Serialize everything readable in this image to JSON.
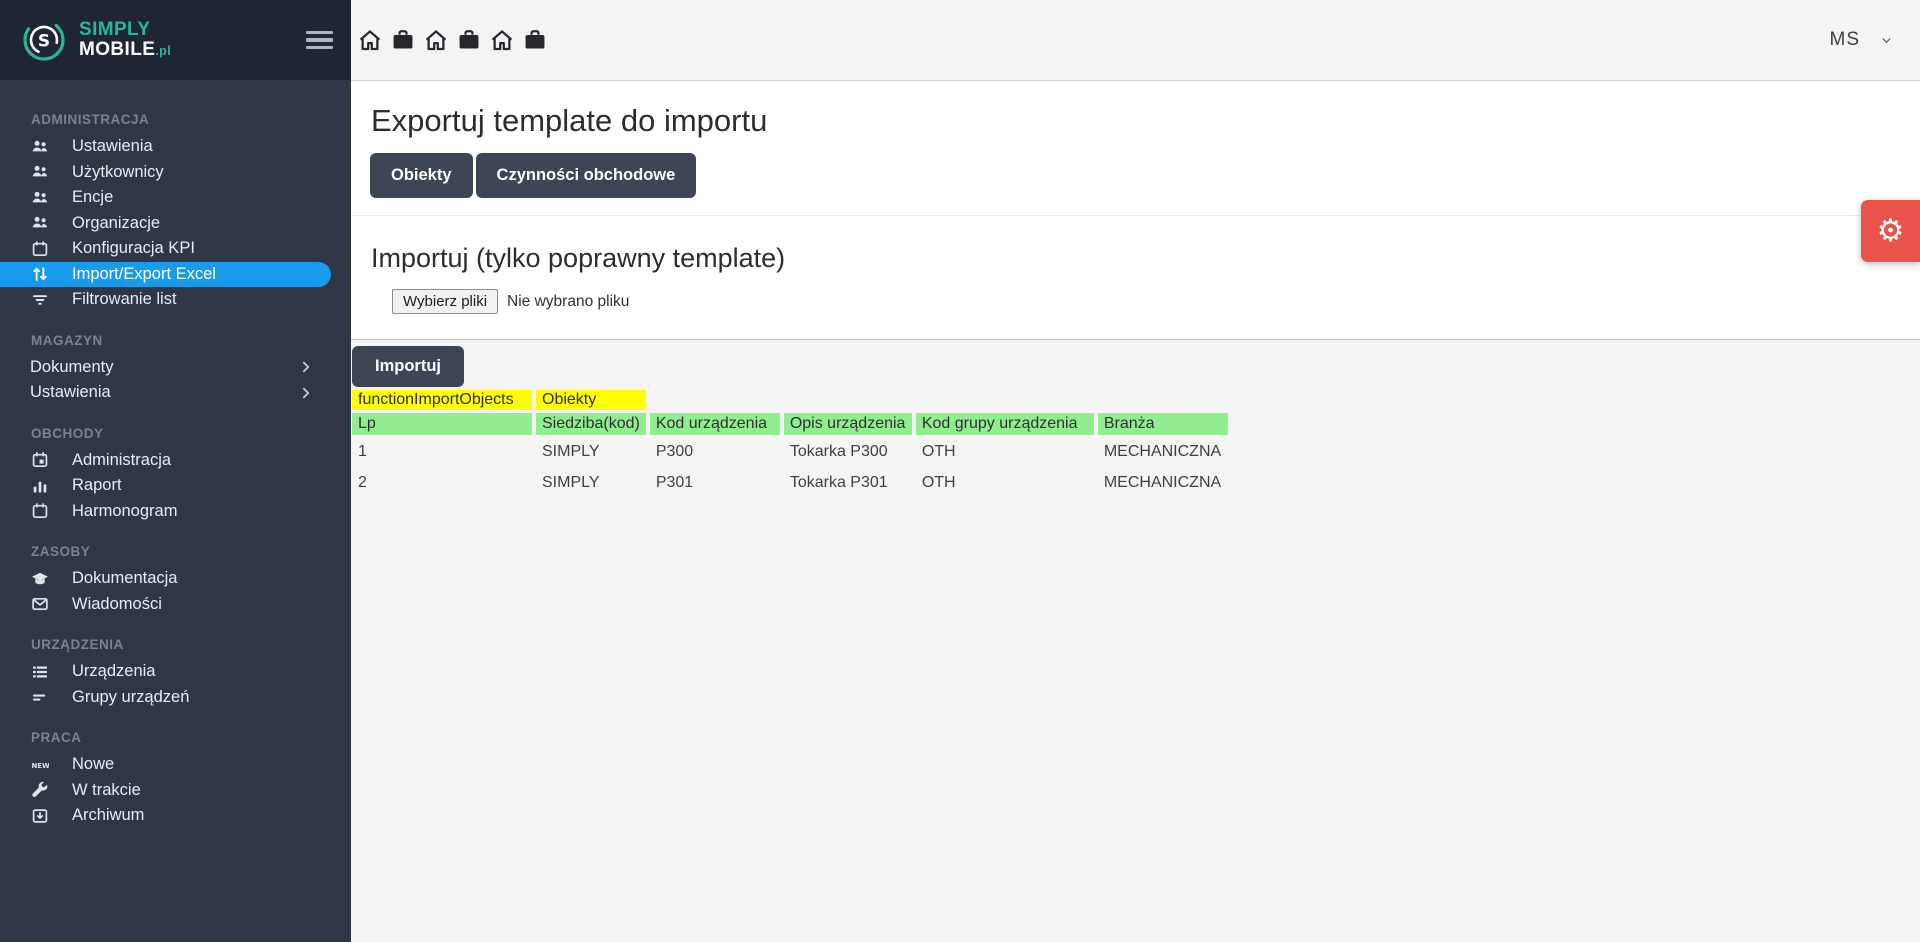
{
  "colors": {
    "accent_blue": "#199bec",
    "sidebar_bg": "#303646",
    "sidebar_header_bg": "#1f2533",
    "topbar_bg": "#f4f4f5",
    "panel_bg": "#ffffff",
    "content_bg": "#f4f4f5",
    "dark_button": "#3e4555",
    "highlight_yellow": "#ffff00",
    "highlight_green": "#90ee90",
    "danger_red": "#ea5349",
    "brand_teal": "#2eb49c"
  },
  "sidebar": {
    "logo": {
      "line1": "SIMPLY",
      "line2": "MOBILE",
      "suffix": ".pl"
    },
    "sections": [
      {
        "label": "ADMINISTRACJA",
        "items": [
          {
            "label": "Ustawienia",
            "icon": "users"
          },
          {
            "label": "Użytkownicy",
            "icon": "users"
          },
          {
            "label": "Encje",
            "icon": "users"
          },
          {
            "label": "Organizacje",
            "icon": "users"
          },
          {
            "label": "Konfiguracja KPI",
            "icon": "calendar"
          },
          {
            "label": "Import/Export Excel",
            "icon": "import-export",
            "active": true
          },
          {
            "label": "Filtrowanie list",
            "icon": "filter"
          }
        ]
      },
      {
        "label": "MAGAZYN",
        "items": [
          {
            "label": "Dokumenty",
            "chevron": true
          },
          {
            "label": "Ustawienia",
            "chevron": true
          }
        ]
      },
      {
        "label": "OBCHODY",
        "items": [
          {
            "label": "Administracja",
            "icon": "calendar-check"
          },
          {
            "label": "Raport",
            "icon": "bar-chart"
          },
          {
            "label": "Harmonogram",
            "icon": "calendar"
          }
        ]
      },
      {
        "label": "ZASOBY",
        "items": [
          {
            "label": "Dokumentacja",
            "icon": "education"
          },
          {
            "label": "Wiadomości",
            "icon": "mail"
          }
        ]
      },
      {
        "label": "URZĄDZENIA",
        "items": [
          {
            "label": "Urządzenia",
            "icon": "list"
          },
          {
            "label": "Grupy urządzeń",
            "icon": "dash"
          }
        ]
      },
      {
        "label": "PRACA",
        "items": [
          {
            "label": "Nowe",
            "icon": "new-badge"
          },
          {
            "label": "W trakcie",
            "icon": "wrench"
          },
          {
            "label": "Archiwum",
            "icon": "archive"
          }
        ]
      }
    ]
  },
  "topbar": {
    "breadcrumb": [
      {
        "icon": "home"
      },
      {
        "icon": "briefcase"
      },
      {
        "icon": "home"
      },
      {
        "icon": "briefcase"
      },
      {
        "icon": "home"
      },
      {
        "icon": "briefcase"
      }
    ],
    "user_initials": "MS"
  },
  "main": {
    "title": "Exportuj template do importu",
    "tabs": [
      {
        "label": "Obiekty"
      },
      {
        "label": "Czynności obchodowe"
      }
    ],
    "import_title": "Importuj (tylko poprawny template)",
    "file_input": {
      "button_label": "Wybierz pliki",
      "status": "Nie wybrano pliku"
    },
    "import_button_label": "Importuj",
    "table": {
      "meta": {
        "key": "functionImportObjects",
        "value": "Obiekty"
      },
      "headers": [
        "Lp",
        "Siedziba(kod)",
        "Kod urządzenia",
        "Opis urządzenia",
        "Kod grupy urządzenia",
        "Branża"
      ],
      "rows": [
        [
          "1",
          "SIMPLY",
          "P300",
          "Tokarka P300",
          "OTH",
          "MECHANICZNA"
        ],
        [
          "2",
          "SIMPLY",
          "P301",
          "Tokarka P301",
          "OTH",
          "MECHANICZNA"
        ]
      ]
    }
  }
}
